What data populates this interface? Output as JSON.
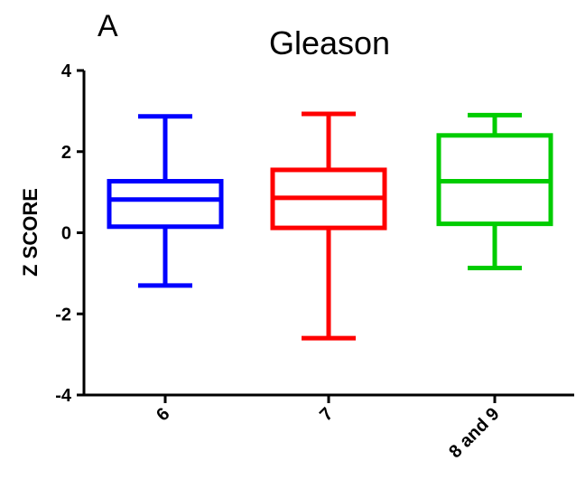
{
  "panel_label": "A",
  "chart_data": {
    "type": "box",
    "title": "Gleason",
    "xlabel": "",
    "ylabel": "Z SCORE",
    "ylim": [
      -4,
      4
    ],
    "yticks": [
      -4,
      -2,
      0,
      2,
      4
    ],
    "grid": false,
    "legend": "none",
    "categories": [
      "6",
      "7",
      "8 and 9"
    ],
    "boxes": [
      {
        "category": "6",
        "color": "#0000ff",
        "min": -1.3,
        "q1": 0.15,
        "median": 0.82,
        "q3": 1.27,
        "max": 2.87
      },
      {
        "category": "7",
        "color": "#ff0000",
        "min": -2.6,
        "q1": 0.12,
        "median": 0.86,
        "q3": 1.55,
        "max": 2.93
      },
      {
        "category": "8 and 9",
        "color": "#00cc00",
        "min": -0.87,
        "q1": 0.22,
        "median": 1.27,
        "q3": 2.4,
        "max": 2.9
      }
    ]
  }
}
